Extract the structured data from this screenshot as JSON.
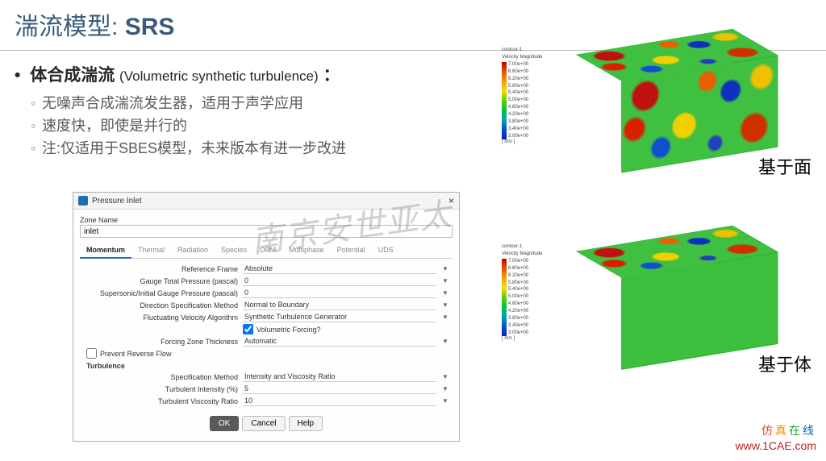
{
  "slide": {
    "title_cn": "湍流模型:",
    "title_en": "SRS",
    "main_bullet_cn": "体合成湍流",
    "main_bullet_en": "(Volumetric synthetic turbulence)",
    "colon": "：",
    "sub_bullets": [
      "无噪声合成湍流发生器，适用于声学应用",
      "速度快，即使是并行的",
      "注:仅适用于SBES模型，未来版本有进一步改进"
    ]
  },
  "dialog": {
    "title": "Pressure Inlet",
    "zone_name_label": "Zone Name",
    "zone_name_value": "inlet",
    "tabs": [
      "Momentum",
      "Thermal",
      "Radiation",
      "Species",
      "DPM",
      "Multiphase",
      "Potential",
      "UDS"
    ],
    "active_tab": 0,
    "rows": [
      {
        "label": "Reference Frame",
        "value": "Absolute",
        "dd": true
      },
      {
        "label": "Gauge Total Pressure (pascal)",
        "value": "0",
        "dd": true
      },
      {
        "label": "Supersonic/Initial Gauge Pressure (pascal)",
        "value": "0",
        "dd": true
      },
      {
        "label": "Direction Specification Method",
        "value": "Normal to Boundary",
        "dd": true
      },
      {
        "label": "Fluctuating Velocity Algorithm",
        "value": "Synthetic Turbulence Generator",
        "dd": true
      }
    ],
    "volumetric_forcing": "Volumetric Forcing?",
    "forcing_row": {
      "label": "Forcing Zone Thickness",
      "value": "Automatic"
    },
    "prevent_reverse": "Prevent Reverse Flow",
    "turbulence_header": "Turbulence",
    "turb_rows": [
      {
        "label": "Specification Method",
        "value": "Intensity and Viscosity Ratio",
        "dd": true
      },
      {
        "label": "Turbulent Intensity (%)",
        "value": "5",
        "dd": true
      },
      {
        "label": "Turbulent Viscosity Ratio",
        "value": "10",
        "dd": true
      }
    ],
    "buttons": {
      "ok": "OK",
      "cancel": "Cancel",
      "help": "Help"
    }
  },
  "legend": {
    "title1": "contour-1",
    "title2": "Velocity Magnitude",
    "values": [
      "7.00e+00",
      "6.60e+00",
      "6.20e+00",
      "5.80e+00",
      "5.40e+00",
      "5.00e+00",
      "4.60e+00",
      "4.20e+00",
      "3.80e+00",
      "3.40e+00",
      "3.00e+00"
    ],
    "unit": "[ m/s ]",
    "colors_top": "#c00000",
    "colors_bottom": "#1020b0"
  },
  "captions": {
    "top": "基于面",
    "bottom": "基于体"
  },
  "watermark": "南京安世亚太",
  "brand": {
    "cn_chars": [
      "仿",
      "真",
      "在",
      "线"
    ],
    "url": "www.1CAE.com"
  }
}
